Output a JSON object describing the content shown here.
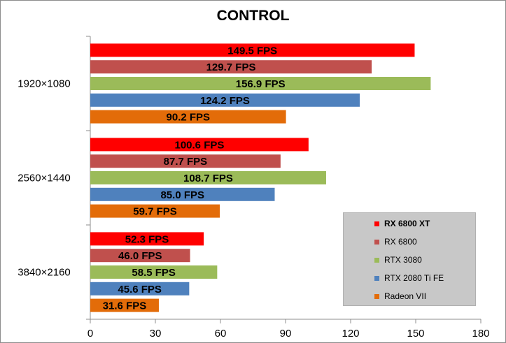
{
  "chart_data": {
    "type": "bar",
    "orientation": "horizontal",
    "title": "CONTROL",
    "categories": [
      "1920×1080",
      "2560×1440",
      "3840×2160"
    ],
    "series": [
      {
        "name": "RX 6800 XT",
        "color": "#ff0000",
        "values": [
          149.5,
          100.6,
          52.3
        ],
        "labels": [
          "149.5 FPS",
          "100.6 FPS",
          "52.3 FPS"
        ]
      },
      {
        "name": "RX 6800",
        "color": "#c0504d",
        "values": [
          129.7,
          87.7,
          46.0
        ],
        "labels": [
          "129.7 FPS",
          "87.7 FPS",
          "46.0 FPS"
        ]
      },
      {
        "name": "RTX 3080",
        "color": "#9bbb59",
        "values": [
          156.9,
          108.7,
          58.5
        ],
        "labels": [
          "156.9 FPS",
          "108.7 FPS",
          "58.5 FPS"
        ]
      },
      {
        "name": "RTX 2080 Ti FE",
        "color": "#4f81bd",
        "values": [
          124.2,
          85.0,
          45.6
        ],
        "labels": [
          "124.2 FPS",
          "85.0 FPS",
          "45.6 FPS"
        ]
      },
      {
        "name": "Radeon VII",
        "color": "#e36c09",
        "values": [
          90.2,
          59.7,
          31.6
        ],
        "labels": [
          "90.2 FPS",
          "59.7 FPS",
          "31.6 FPS"
        ]
      }
    ],
    "xlim": [
      0,
      180
    ],
    "xticks": [
      "0",
      "30",
      "60",
      "90",
      "120",
      "150",
      "180"
    ],
    "xlabel": "",
    "ylabel": "",
    "grid": false,
    "legend_position": "bottom-right"
  }
}
